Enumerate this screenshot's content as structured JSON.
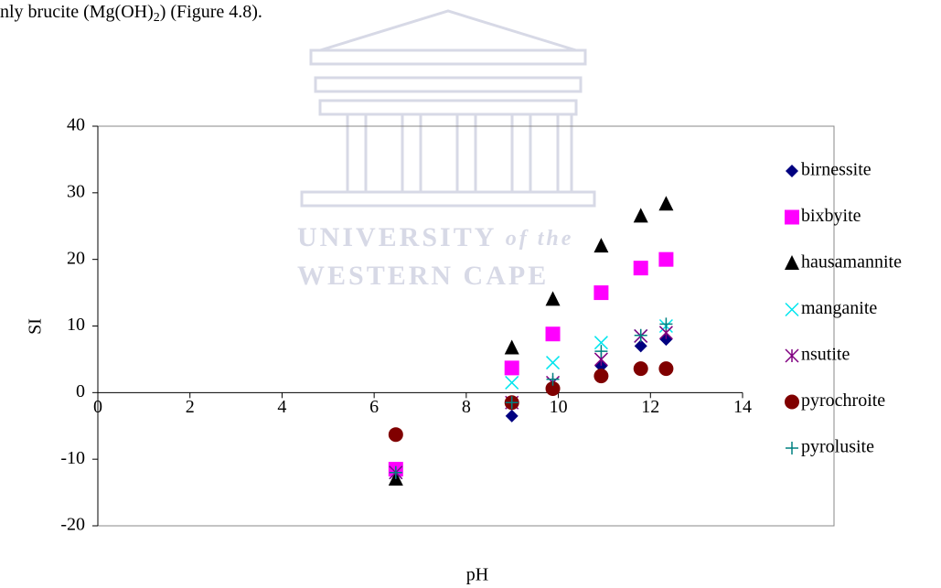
{
  "document": {
    "text_before": "nly brucite (Mg(OH)",
    "subscript": "2",
    "text_after": ") (Figure 4.8).",
    "watermark": {
      "line1": "UNIVERSITY",
      "line1_italic": "of the",
      "line2": "WESTERN CAPE"
    }
  },
  "chart_data": {
    "type": "scatter",
    "x_label": "pH",
    "y_label": "SI",
    "x": [
      6.47,
      8.99,
      9.88,
      10.93,
      11.79,
      12.34
    ],
    "xlim": [
      0,
      14
    ],
    "xticks": [
      0,
      2,
      4,
      6,
      8,
      10,
      12,
      14
    ],
    "ylim": [
      -20,
      40
    ],
    "yticks": [
      -20,
      -10,
      0,
      10,
      20,
      30,
      40
    ],
    "grid": false,
    "legend": "right",
    "series": [
      {
        "name": "birnessite",
        "color": "#000080",
        "marker": "diamond",
        "values": [
          -12,
          -3.5,
          0.5,
          4,
          7,
          8
        ]
      },
      {
        "name": "bixbyite",
        "color": "#ff00ff",
        "marker": "square",
        "values": [
          -11.5,
          3.7,
          8.8,
          15,
          18.7,
          20
        ]
      },
      {
        "name": "hausamannite",
        "color": "#000000",
        "marker": "triangle",
        "values": [
          -13,
          6.7,
          14,
          22,
          26.5,
          28.3
        ]
      },
      {
        "name": "manganite",
        "color": "#00e5ee",
        "marker": "x",
        "values": [
          -12,
          1.5,
          4.5,
          7.5,
          8.5,
          10
        ]
      },
      {
        "name": "nsutite",
        "color": "#800080",
        "marker": "asterisk",
        "values": [
          -12,
          -1.5,
          1.5,
          5,
          8.5,
          9
        ]
      },
      {
        "name": "pyrochroite",
        "color": "#800000",
        "marker": "circle",
        "values": [
          -6.3,
          -1.5,
          0.6,
          2.5,
          3.6,
          3.6
        ]
      },
      {
        "name": "pyrolusite",
        "color": "#008080",
        "marker": "plus",
        "values": [
          -12,
          -1.5,
          2,
          6.2,
          8.6,
          10.3
        ]
      }
    ]
  }
}
